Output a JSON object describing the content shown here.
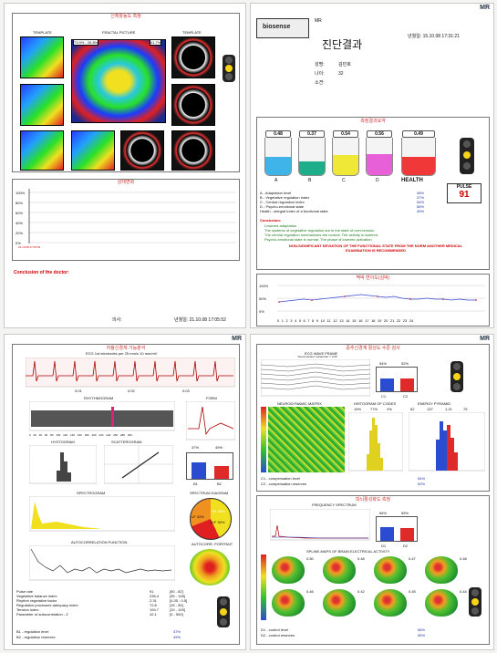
{
  "brand": {
    "mr": "MR",
    "logo": "biosense"
  },
  "p1": {
    "title": "신체활동도 측정",
    "col_left": "TEMPLATE",
    "col_mid": "FRACTAL PICTURE",
    "col_right": "TEMPLATE",
    "range": "73.9% - 26.8%",
    "pct": "41.7%",
    "graph_title": "상태변화",
    "y_ticks": [
      "100%",
      "80%",
      "60%",
      "40%",
      "20%",
      "0%"
    ],
    "conclusion": "Conclusion of the doctor:",
    "sig_label": "의사:",
    "date": "년월일: 21.10.08 17:05:52"
  },
  "p2": {
    "mr": "MR",
    "title": "진단결과",
    "date": "년월일: 15.10.08 17:31:21",
    "name_label": "성명:",
    "name": "김민호",
    "age_label": "나이:",
    "age": "32",
    "dept_label": "소견:",
    "section": "측정결과요약",
    "glasses": [
      {
        "label": "A",
        "value": "0.48",
        "level": 0.48,
        "color": "#3fb4e8"
      },
      {
        "label": "B",
        "value": "0.37",
        "level": 0.37,
        "color": "#1fae8a"
      },
      {
        "label": "C",
        "value": "0.54",
        "level": 0.54,
        "color": "#f0e836"
      },
      {
        "label": "D",
        "value": "0.56",
        "level": 0.56,
        "color": "#e860d8"
      },
      {
        "label": "HEALTH",
        "value": "0.49",
        "level": 0.49,
        "color": "#f03838"
      }
    ],
    "pulse_label": "PULSE",
    "pulse": "91",
    "indices": [
      {
        "name": "A - Adaptation level",
        "val": "48%"
      },
      {
        "name": "B - Vegetative regulation index",
        "val": "37%"
      },
      {
        "name": "C - Central regulation index",
        "val": "54%"
      },
      {
        "name": "D - Psycho-emotional state",
        "val": "56%"
      },
      {
        "name": "Health - integral index of a functional state",
        "val": "49%"
      }
    ],
    "conclusion_label": "Conclusion:",
    "conclusions": [
      "Lowered adaptation",
      "The systems of vegetative regulation are in the state of over-tension",
      "The central regulation mechanisms are normal. The activity is lowered",
      "Psycho-emotional state is normal. The phase of  lowered activation"
    ],
    "warning": "NON-SIGNIFICANT DEVIATION OF THE FUNCTIONAL STATE FROM THE NORM ANOTHER MEDICAL EXAMINATION IS RECOMMENDED",
    "chart_title": "맥박 변이도(심박)",
    "chart_y": [
      "100%",
      "50%",
      "0%"
    ],
    "chart_x": [
      "0",
      "1",
      "2",
      "3",
      "4",
      "5",
      "6",
      "7",
      "8",
      "9",
      "10",
      "11",
      "12",
      "13",
      "14",
      "15",
      "16",
      "17",
      "18",
      "19",
      "20",
      "21",
      "22",
      "23",
      "24"
    ]
  },
  "p3": {
    "title": "자율신경계 기능분석",
    "ecg_label": "ECG 1st electrodes per 25 mm/s 10 mm/mV",
    "ecg_ticks": [
      "0:01",
      "0:02",
      "0:03"
    ],
    "rhythmo": "RHYTHMOGRAM",
    "rhythmo_x": [
      "0",
      "20",
      "40",
      "60",
      "80",
      "100",
      "120",
      "140",
      "160",
      "180",
      "200",
      "220",
      "240",
      "260",
      "280",
      "300"
    ],
    "form": "FORM",
    "hysto": "HYSTOGRAM",
    "scatter": "SCATTEROGRAM",
    "b_pcts": [
      "37%",
      "49%"
    ],
    "b_labels": [
      "B1",
      "B2"
    ],
    "spectro": "SPECTROGRAM",
    "spec_diag": "SPECTRUM DIAGRAM",
    "pie": [
      {
        "label": "LF 43%",
        "value": 43
      },
      {
        "label": "HF 26%",
        "value": 26
      },
      {
        "label": "VLF 30%",
        "value": 30
      }
    ],
    "autocorr": "AUTOCORRELATION FUNCTION",
    "autoport": "AUTOCORR. PORTRAIT",
    "params": [
      {
        "n": "Pulse rate",
        "v": "91",
        "r": "[50 - 82]"
      },
      {
        "n": "Vegetative balance index",
        "v": "236.4",
        "r": "[35 - 145]"
      },
      {
        "n": "Rhythm vegetative factor",
        "v": "2.31",
        "r": "[0.25 - 0.5]"
      },
      {
        "n": "Regulation processes adequacy index",
        "v": "72.8",
        "r": "[15 - 50]"
      },
      {
        "n": "Tension index",
        "v": "194.7",
        "r": "[10 - 100]"
      },
      {
        "n": "Parameter of autocorrelation - Z",
        "v": "42.1",
        "r": "[0 - 500]"
      }
    ],
    "regs": [
      {
        "n": "B1 - regulation level",
        "v": "37%"
      },
      {
        "n": "B2 - regulation reserves",
        "v": "49%"
      }
    ]
  },
  "p4": {
    "mr": "MR",
    "title": "중추신경계 활성도 수준 검사",
    "ecg_wave": "ECG WAVE FRAME",
    "ecg_note": "\"Good section\" parameter = 0.26",
    "c_pcts": [
      "54%",
      "52%"
    ],
    "c_labels": [
      "C1",
      "C2"
    ],
    "matrix": "NEURODYNAMIC MATRIX",
    "hist_codes": "HISTOGRAM OF CODES",
    "hist_vals": [
      "19%",
      "77%",
      "4%"
    ],
    "energy": "ENERGY PYRAMID",
    "energy_vals": [
      "62",
      "137",
      "1.21",
      "75"
    ],
    "comps": [
      {
        "n": "C1 - compensation level",
        "v": "54%"
      },
      {
        "n": "C2 - compensation reserves",
        "v": "52%"
      }
    ],
    "section2": "대뇌활성화도 측정",
    "freq": "FREQUENCY SPECTRUM",
    "d_pcts": [
      "56%",
      "55%"
    ],
    "d_labels": [
      "D1",
      "D2"
    ],
    "brain_title": "SPLINE-MAPS OF BRAIN ELECTRICAL ACTIVITY",
    "brain_vals": [
      "0.50",
      "0.48",
      "0.47",
      "0.48",
      "0.46",
      "0.42",
      "0.45",
      "0.44"
    ],
    "ctrl": [
      {
        "n": "D1 - control level",
        "v": "56%"
      },
      {
        "n": "D2 - control reserves",
        "v": "55%"
      }
    ]
  }
}
